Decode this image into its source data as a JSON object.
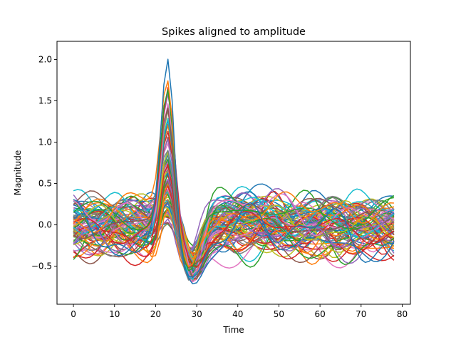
{
  "chart_data": {
    "type": "line",
    "title": "Spikes aligned to amplitude",
    "xlabel": "Time",
    "ylabel": "Magnitude",
    "xlim": [
      -4,
      82
    ],
    "ylim": [
      -0.96,
      2.22
    ],
    "xticks": [
      0,
      10,
      20,
      30,
      40,
      50,
      60,
      70,
      80
    ],
    "xtick_labels": [
      "0",
      "10",
      "20",
      "30",
      "40",
      "50",
      "60",
      "70",
      "80"
    ],
    "yticks": [
      -0.5,
      0.0,
      0.5,
      1.0,
      1.5,
      2.0
    ],
    "ytick_labels": [
      "−0.5",
      "0.0",
      "0.5",
      "1.0",
      "1.5",
      "2.0"
    ],
    "grid": false,
    "legend": "none",
    "n_samples": 79,
    "peak_index": 23,
    "colors": [
      "#1f77b4",
      "#ff7f0e",
      "#2ca02c",
      "#d62728",
      "#9467bd",
      "#8c564b",
      "#e377c2",
      "#7f7f7f",
      "#bcbd22",
      "#17becf"
    ],
    "series_peak_amplitudes": [
      2.07,
      1.88,
      1.75,
      1.68,
      1.62,
      1.55,
      1.5,
      1.45,
      1.4,
      1.35,
      1.3,
      1.25,
      1.22,
      1.18,
      1.12,
      1.08,
      1.02,
      0.98,
      0.95,
      0.92,
      0.9,
      0.88,
      0.85,
      0.82,
      0.8,
      0.78,
      0.76,
      0.74,
      0.72,
      0.7,
      0.68,
      0.66,
      0.64,
      0.62,
      0.6,
      0.58,
      0.57,
      0.56,
      0.55,
      0.54,
      0.53,
      0.52,
      0.51,
      0.5,
      0.49,
      0.48,
      0.47,
      0.46,
      0.45,
      0.44,
      0.43,
      0.42,
      0.41,
      0.4,
      0.39,
      0.38,
      0.37,
      0.36,
      0.35,
      0.34,
      0.33,
      0.32,
      0.31,
      0.3,
      0.29,
      0.28,
      0.27,
      0.26,
      0.25,
      0.24,
      0.23,
      0.22,
      0.21,
      0.2,
      0.19,
      0.18,
      0.17,
      0.16,
      0.15,
      0.14,
      0.13,
      0.12,
      0.11,
      0.1,
      0.08,
      0.06,
      0.05,
      0.04,
      0.03,
      0.02
    ],
    "trough_range": [
      -0.83,
      -0.3
    ],
    "baseline_range": [
      -0.55,
      0.5
    ]
  }
}
